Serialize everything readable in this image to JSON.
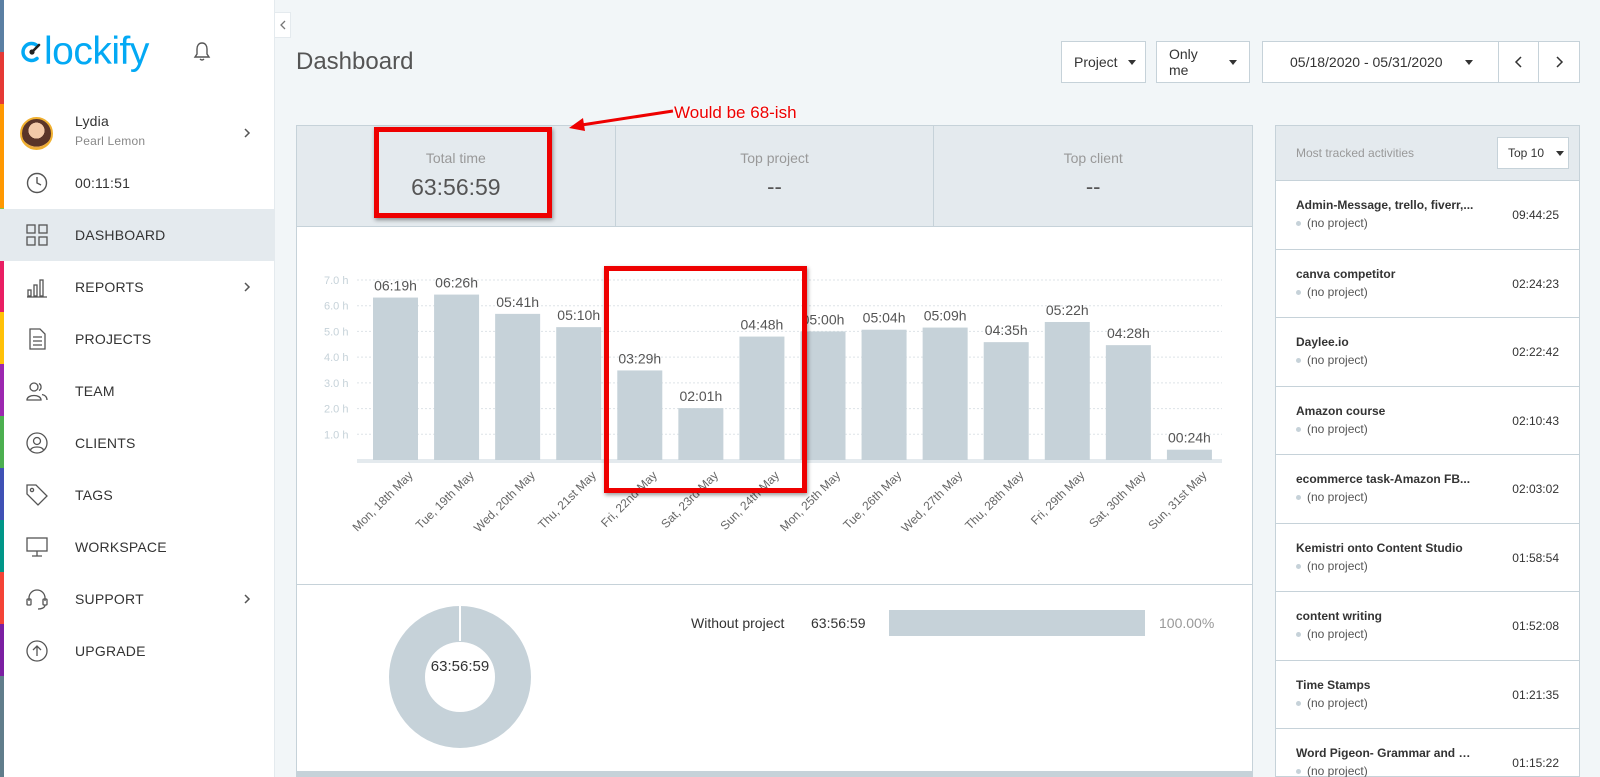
{
  "app": {
    "logo_text": "lockify",
    "logo_mark": "C"
  },
  "colors": {
    "accent": "#03a9f4",
    "bar": "#c6d2d9",
    "annotation_red": "#ee0000",
    "strip": [
      "#5b7fa3",
      "#e53935",
      "#ff9800",
      "#ff9800",
      "#8bc34a",
      "#e91e63",
      "#ffc107",
      "#9c27b0",
      "#4caf50",
      "#3f51b5",
      "#009688",
      "#f44336",
      "#7b1fa2",
      "#607d8b",
      "#607d8b"
    ]
  },
  "user": {
    "name": "Lydia",
    "workspace": "Pearl Lemon"
  },
  "timer": "00:11:51",
  "nav": [
    {
      "label": "DASHBOARD",
      "icon": "grid-icon",
      "active": true
    },
    {
      "label": "REPORTS",
      "icon": "bar-chart-icon",
      "chevron": true
    },
    {
      "label": "PROJECTS",
      "icon": "document-icon"
    },
    {
      "label": "TEAM",
      "icon": "team-icon"
    },
    {
      "label": "CLIENTS",
      "icon": "client-icon"
    },
    {
      "label": "TAGS",
      "icon": "tag-icon"
    },
    {
      "label": "WORKSPACE",
      "icon": "monitor-icon"
    },
    {
      "label": "SUPPORT",
      "icon": "headset-icon",
      "chevron": true
    },
    {
      "label": "UPGRADE",
      "icon": "upgrade-icon"
    }
  ],
  "header": {
    "title": "Dashboard",
    "filter_project": "Project",
    "filter_user": "Only me",
    "date_range": "05/18/2020 - 05/31/2020"
  },
  "stats": {
    "total_time_label": "Total time",
    "total_time_value": "63:56:59",
    "top_project_label": "Top project",
    "top_project_value": "--",
    "top_client_label": "Top client",
    "top_client_value": "--"
  },
  "annotation": "Would be 68-ish",
  "chart_data": {
    "type": "bar",
    "categories": [
      "Mon, 18th May",
      "Tue, 19th May",
      "Wed, 20th May",
      "Thu, 21st May",
      "Fri, 22nd May",
      "Sat, 23rd May",
      "Sun, 24th May",
      "Mon, 25th May",
      "Tue, 26th May",
      "Wed, 27th May",
      "Thu, 28th May",
      "Fri, 29th May",
      "Sat, 30th May",
      "Sun, 31st May"
    ],
    "values": [
      6.317,
      6.433,
      5.683,
      5.167,
      3.483,
      2.017,
      4.8,
      5.0,
      5.067,
      5.15,
      4.583,
      5.367,
      4.467,
      0.4
    ],
    "data_labels": [
      "06:19h",
      "06:26h",
      "05:41h",
      "05:10h",
      "03:29h",
      "02:01h",
      "04:48h",
      "05:00h",
      "05:04h",
      "05:09h",
      "04:35h",
      "05:22h",
      "04:28h",
      "00:24h"
    ],
    "y_ticks": [
      "1.0 h",
      "2.0 h",
      "3.0 h",
      "4.0 h",
      "5.0 h",
      "6.0 h",
      "7.0 h"
    ],
    "ylim": [
      0,
      7
    ],
    "grid": true
  },
  "breakdown": {
    "center_label": "63:56:59",
    "name": "Without project",
    "time": "63:56:59",
    "percent": "100.00%"
  },
  "activities": {
    "header_label": "Most tracked activities",
    "top_select": "Top 10",
    "items": [
      {
        "name": "Admin-Message, trello, fiverr,...",
        "project": "(no project)",
        "time": "09:44:25"
      },
      {
        "name": "canva competitor",
        "project": "(no project)",
        "time": "02:24:23"
      },
      {
        "name": "Daylee.io",
        "project": "(no project)",
        "time": "02:22:42"
      },
      {
        "name": "Amazon course",
        "project": "(no project)",
        "time": "02:10:43"
      },
      {
        "name": "ecommerce task-Amazon FB...",
        "project": "(no project)",
        "time": "02:03:02"
      },
      {
        "name": "Kemistri onto Content Studio",
        "project": "(no project)",
        "time": "01:58:54"
      },
      {
        "name": "content writing",
        "project": "(no project)",
        "time": "01:52:08"
      },
      {
        "name": "Time Stamps",
        "project": "(no project)",
        "time": "01:21:35"
      },
      {
        "name": "Word Pigeon- Grammar and S...",
        "project": "(no project)",
        "time": "01:15:22"
      }
    ]
  }
}
